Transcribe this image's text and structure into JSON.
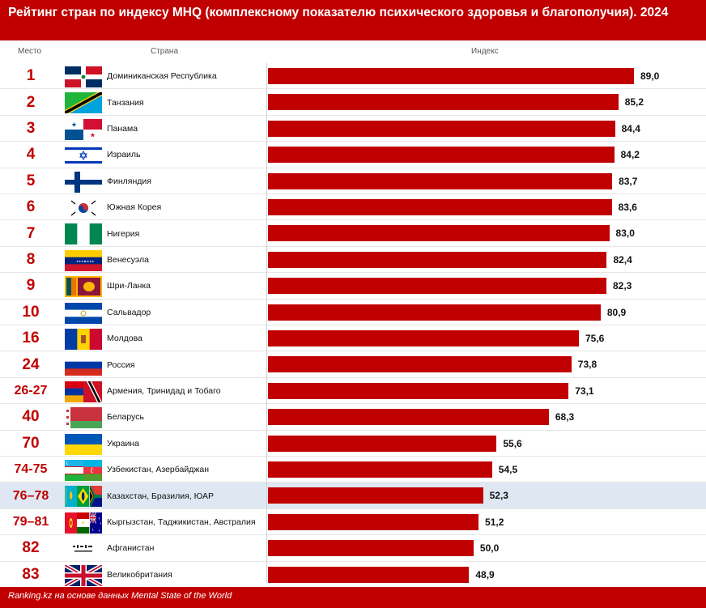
{
  "title": "Рейтинг стран по индексу MHQ (комплексному показателю психического здоровья и благополучия). 2024",
  "columns": {
    "rank": "Место",
    "country": "Страна",
    "index": "Индекс"
  },
  "footer": "Ranking.kz на основе данных Mental State of the World",
  "colors": {
    "accent": "#c00000",
    "highlight": "#dfe8f2"
  },
  "highlight_row": 16,
  "rows": [
    {
      "rank": "1",
      "country": "Доминиканская Республика",
      "value_label": "89,0",
      "flags": [
        "dominican-republic"
      ]
    },
    {
      "rank": "2",
      "country": "Танзания",
      "value_label": "85,2",
      "flags": [
        "tanzania"
      ]
    },
    {
      "rank": "3",
      "country": "Панама",
      "value_label": "84,4",
      "flags": [
        "panama"
      ]
    },
    {
      "rank": "4",
      "country": "Израиль",
      "value_label": "84,2",
      "flags": [
        "israel"
      ]
    },
    {
      "rank": "5",
      "country": "Финляндия",
      "value_label": "83,7",
      "flags": [
        "finland"
      ]
    },
    {
      "rank": "6",
      "country": "Южная Корея",
      "value_label": "83,6",
      "flags": [
        "south-korea"
      ]
    },
    {
      "rank": "7",
      "country": "Нигерия",
      "value_label": "83,0",
      "flags": [
        "nigeria"
      ]
    },
    {
      "rank": "8",
      "country": "Венесуэла",
      "value_label": "82,4",
      "flags": [
        "venezuela"
      ]
    },
    {
      "rank": "9",
      "country": "Шри-Ланка",
      "value_label": "82,3",
      "flags": [
        "sri-lanka"
      ]
    },
    {
      "rank": "10",
      "country": "Сальвадор",
      "value_label": "80,9",
      "flags": [
        "el-salvador"
      ]
    },
    {
      "rank": "16",
      "country": "Молдова",
      "value_label": "75,6",
      "flags": [
        "moldova"
      ]
    },
    {
      "rank": "24",
      "country": "Россия",
      "value_label": "73,8",
      "flags": [
        "russia"
      ]
    },
    {
      "rank": "26-27",
      "country": "Армения, Тринидад и Тобаго",
      "value_label": "73,1",
      "flags": [
        "armenia",
        "trinidad-and-tobago"
      ]
    },
    {
      "rank": "40",
      "country": "Беларусь",
      "value_label": "68,3",
      "flags": [
        "belarus"
      ]
    },
    {
      "rank": "70",
      "country": "Украина",
      "value_label": "55,6",
      "flags": [
        "ukraine"
      ]
    },
    {
      "rank": "74-75",
      "country": "Узбекистан, Азербайджан",
      "value_label": "54,5",
      "flags": [
        "uzbekistan",
        "azerbaijan"
      ]
    },
    {
      "rank": "76–78",
      "country": "Казахстан, Бразилия, ЮАР",
      "value_label": "52,3",
      "flags": [
        "kazakhstan",
        "brazil",
        "south-africa"
      ]
    },
    {
      "rank": "79–81",
      "country": "Кыргызстан, Таджикистан, Австралия",
      "value_label": "51,2",
      "flags": [
        "kyrgyzstan",
        "tajikistan",
        "australia"
      ]
    },
    {
      "rank": "82",
      "country": "Афганистан",
      "value_label": "50,0",
      "flags": [
        "afghanistan"
      ]
    },
    {
      "rank": "83",
      "country": "Великобритания",
      "value_label": "48,9",
      "flags": [
        "united-kingdom"
      ]
    }
  ],
  "chart_data": {
    "type": "bar",
    "orientation": "horizontal",
    "title": "Рейтинг стран по индексу MHQ (комплексному показателю психического здоровья и благополучия). 2024",
    "categories": [
      "Доминиканская Республика",
      "Танзания",
      "Панама",
      "Израиль",
      "Финляндия",
      "Южная Корея",
      "Нигерия",
      "Венесуэла",
      "Шри-Ланка",
      "Сальвадор",
      "Молдова",
      "Россия",
      "Армения, Тринидад и Тобаго",
      "Беларусь",
      "Украина",
      "Узбекистан, Азербайджан",
      "Казахстан, Бразилия, ЮАР",
      "Кыргызстан, Таджикистан, Австралия",
      "Афганистан",
      "Великобритания"
    ],
    "values": [
      89.0,
      85.2,
      84.4,
      84.2,
      83.7,
      83.6,
      83.0,
      82.4,
      82.3,
      80.9,
      75.6,
      73.8,
      73.1,
      68.3,
      55.6,
      54.5,
      52.3,
      51.2,
      50.0,
      48.9
    ],
    "xlim": [
      0,
      89
    ],
    "grid": false,
    "legend": "none"
  }
}
